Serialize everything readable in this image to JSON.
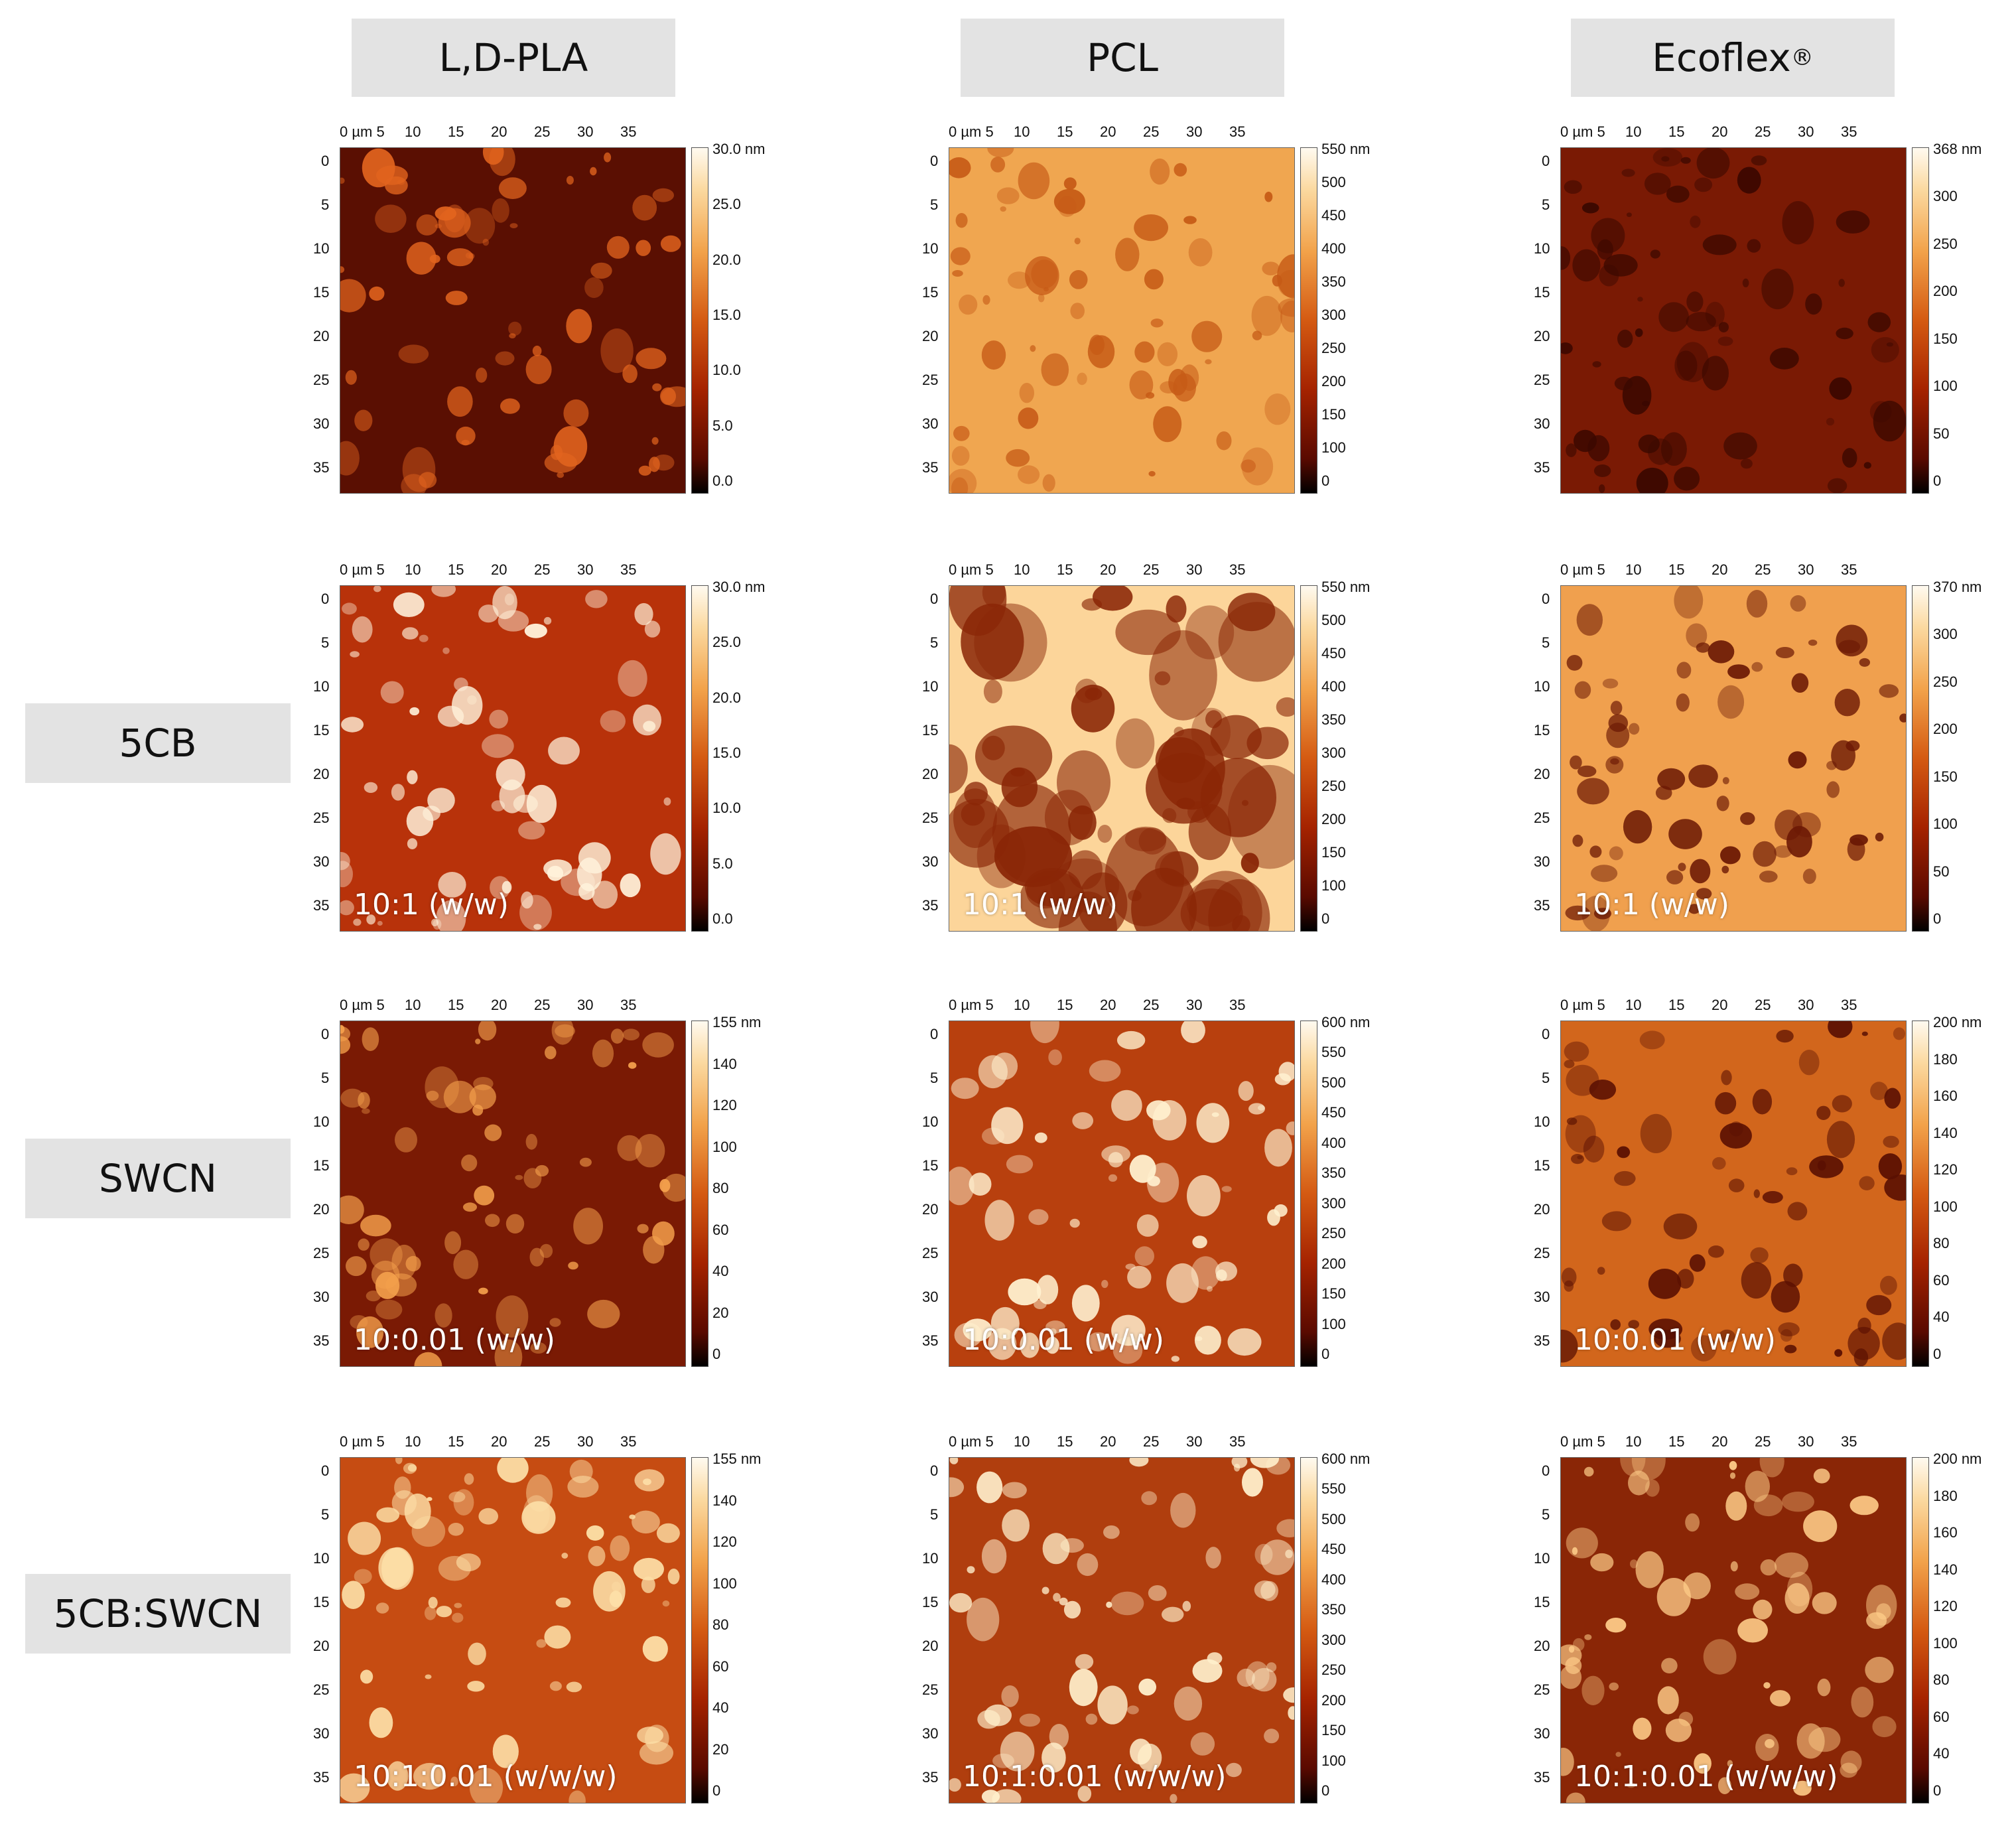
{
  "columns": [
    {
      "label": "L,D-PLA",
      "sup": ""
    },
    {
      "label": "PCL",
      "sup": ""
    },
    {
      "label": "Ecoflex",
      "sup": "®"
    }
  ],
  "rows": [
    {
      "label": ""
    },
    {
      "label": "5CB"
    },
    {
      "label": "SWCN"
    },
    {
      "label": "5CB:SWCN"
    }
  ],
  "axis": {
    "x_ticks": [
      "0 µm 5",
      "10",
      "15",
      "20",
      "25",
      "30",
      "35"
    ],
    "y_ticks": [
      "0",
      "5",
      "10",
      "15",
      "20",
      "25",
      "30",
      "35"
    ]
  },
  "panels": [
    [
      {
        "ratio": "",
        "colorbar": [
          "30.0 nm",
          "25.0",
          "20.0",
          "15.0",
          "10.0",
          "5.0",
          "0.0"
        ],
        "bg": "#5a0f02",
        "spots": "#e2641e"
      },
      {
        "ratio": "",
        "colorbar": [
          "550 nm",
          "500",
          "450",
          "400",
          "350",
          "300",
          "250",
          "200",
          "150",
          "100",
          "0"
        ],
        "bg": "#f0a650",
        "spots": "#c65a16"
      },
      {
        "ratio": "",
        "colorbar": [
          "368 nm",
          "300",
          "250",
          "200",
          "150",
          "100",
          "50",
          "0"
        ],
        "bg": "#7a1a04",
        "spots": "#3b0800"
      }
    ],
    [
      {
        "ratio": "10:1 (w/w)",
        "colorbar": [
          "30.0 nm",
          "25.0",
          "20.0",
          "15.0",
          "10.0",
          "5.0",
          "0.0"
        ],
        "bg": "#b8320a",
        "spots": "#fff3dc"
      },
      {
        "ratio": "10:1 (w/w)",
        "colorbar": [
          "550 nm",
          "500",
          "450",
          "400",
          "350",
          "300",
          "250",
          "200",
          "150",
          "100",
          "0"
        ],
        "bg": "#fcd59a",
        "spots": "#8a2606"
      },
      {
        "ratio": "10:1 (w/w)",
        "colorbar": [
          "370 nm",
          "300",
          "250",
          "200",
          "150",
          "100",
          "50",
          "0"
        ],
        "bg": "#f0a04e",
        "spots": "#6b1804"
      }
    ],
    [
      {
        "ratio": "10:0.01 (w/w)",
        "colorbar": [
          "155 nm",
          "140",
          "120",
          "100",
          "80",
          "60",
          "40",
          "20",
          "0"
        ],
        "bg": "#7a1a04",
        "spots": "#f4a04c"
      },
      {
        "ratio": "10:0.01 (w/w)",
        "colorbar": [
          "600 nm",
          "550",
          "500",
          "450",
          "400",
          "350",
          "300",
          "250",
          "200",
          "150",
          "100",
          "0"
        ],
        "bg": "#b8400e",
        "spots": "#fff1d0"
      },
      {
        "ratio": "10:0.01 (w/w)",
        "colorbar": [
          "200 nm",
          "180",
          "160",
          "140",
          "120",
          "100",
          "80",
          "60",
          "40",
          "0"
        ],
        "bg": "#d2661c",
        "spots": "#5a1002"
      }
    ],
    [
      {
        "ratio": "10:1:0.01 (w/w/w)",
        "colorbar": [
          "155 nm",
          "140",
          "120",
          "100",
          "80",
          "60",
          "40",
          "20",
          "0"
        ],
        "bg": "#c64c12",
        "spots": "#fde0a8"
      },
      {
        "ratio": "10:1:0.01 (w/w/w)",
        "colorbar": [
          "600 nm",
          "550",
          "500",
          "450",
          "400",
          "350",
          "300",
          "250",
          "200",
          "150",
          "100",
          "0"
        ],
        "bg": "#b03e0e",
        "spots": "#fff0cc"
      },
      {
        "ratio": "10:1:0.01 (w/w/w)",
        "colorbar": [
          "200 nm",
          "180",
          "160",
          "140",
          "120",
          "100",
          "80",
          "60",
          "40",
          "0"
        ],
        "bg": "#8a2606",
        "spots": "#ffce8a"
      }
    ]
  ]
}
